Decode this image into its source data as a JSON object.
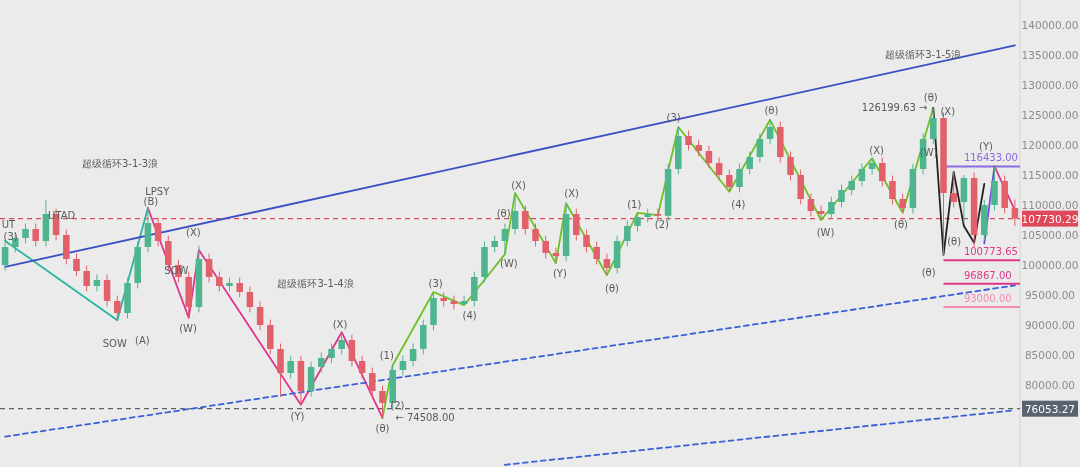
{
  "chart_data": {
    "type": "candlestick",
    "categories": [
      null,
      null,
      null,
      null,
      null,
      null,
      null,
      null,
      null,
      null,
      null,
      null,
      null,
      null,
      null,
      null,
      null,
      null,
      null,
      null,
      null,
      null,
      null,
      null,
      null,
      null,
      null,
      null,
      null,
      null,
      null,
      null,
      null,
      null,
      null,
      null,
      null,
      null,
      null,
      null,
      null,
      null,
      null,
      null,
      null,
      null,
      null,
      null,
      null,
      null,
      null,
      null,
      null,
      null,
      null,
      null,
      null,
      null,
      null,
      null,
      null,
      null,
      null,
      null,
      null,
      null,
      null,
      null,
      null,
      null,
      null,
      null,
      null,
      null,
      null,
      null,
      null,
      null,
      null,
      null,
      null,
      null,
      null,
      null,
      null,
      null,
      null,
      null,
      null,
      null,
      null,
      null,
      null,
      null,
      null,
      null,
      null,
      null,
      null,
      null
    ],
    "ohlc": [
      [
        100000,
        103800,
        99100,
        103000
      ],
      [
        103000,
        105400,
        102100,
        104500
      ],
      [
        104500,
        106900,
        103600,
        106000
      ],
      [
        106000,
        106900,
        103100,
        104000
      ],
      [
        104000,
        110800,
        103100,
        108500
      ],
      [
        108500,
        109400,
        104100,
        105000
      ],
      [
        105000,
        105900,
        100100,
        101000
      ],
      [
        101000,
        101900,
        98100,
        99000
      ],
      [
        99000,
        99900,
        95600,
        96500
      ],
      [
        96500,
        98400,
        95600,
        97500
      ],
      [
        97500,
        98400,
        93100,
        94000
      ],
      [
        94000,
        94900,
        90800,
        92000
      ],
      [
        92000,
        97900,
        91100,
        97000
      ],
      [
        97000,
        103900,
        96100,
        103000
      ],
      [
        103000,
        109500,
        102100,
        107000
      ],
      [
        107000,
        107900,
        103100,
        104000
      ],
      [
        104000,
        104900,
        99100,
        100000
      ],
      [
        100000,
        100900,
        97100,
        98000
      ],
      [
        98000,
        98900,
        91200,
        93000
      ],
      [
        93000,
        103200,
        92100,
        101000
      ],
      [
        101000,
        101900,
        97100,
        98000
      ],
      [
        98000,
        98900,
        95600,
        96500
      ],
      [
        96500,
        97900,
        95600,
        97000
      ],
      [
        97000,
        97900,
        94600,
        95500
      ],
      [
        95500,
        96400,
        92100,
        93000
      ],
      [
        93000,
        93900,
        89100,
        90000
      ],
      [
        90000,
        90900,
        85100,
        86000
      ],
      [
        86000,
        86900,
        78000,
        82000
      ],
      [
        82000,
        84900,
        81100,
        84000
      ],
      [
        84000,
        84900,
        76700,
        79000
      ],
      [
        79000,
        83900,
        78100,
        83000
      ],
      [
        83000,
        85400,
        82100,
        84500
      ],
      [
        84500,
        86900,
        83600,
        86000
      ],
      [
        86000,
        88800,
        85100,
        87500
      ],
      [
        87500,
        88400,
        83100,
        84000
      ],
      [
        84000,
        84900,
        81100,
        82000
      ],
      [
        82000,
        82900,
        78100,
        79000
      ],
      [
        79000,
        79900,
        74508,
        77000
      ],
      [
        77000,
        83300,
        76100,
        82500
      ],
      [
        82500,
        84900,
        81600,
        84000
      ],
      [
        84000,
        86900,
        83100,
        86000
      ],
      [
        86000,
        90900,
        85100,
        90000
      ],
      [
        90000,
        95500,
        89100,
        94500
      ],
      [
        94500,
        95400,
        93100,
        94000
      ],
      [
        94000,
        94900,
        92600,
        93500
      ],
      [
        93500,
        94900,
        93300,
        94000
      ],
      [
        94000,
        98900,
        93100,
        98000
      ],
      [
        98000,
        103900,
        97100,
        103000
      ],
      [
        103000,
        104900,
        102100,
        104000
      ],
      [
        104000,
        106900,
        101800,
        106000
      ],
      [
        106000,
        112000,
        105100,
        109000
      ],
      [
        109000,
        109900,
        105100,
        106000
      ],
      [
        106000,
        106900,
        103100,
        104000
      ],
      [
        104000,
        104900,
        101100,
        102000
      ],
      [
        102000,
        102900,
        100300,
        101500
      ],
      [
        101500,
        110300,
        100600,
        108500
      ],
      [
        108500,
        109400,
        104100,
        105000
      ],
      [
        105000,
        105900,
        102100,
        103000
      ],
      [
        103000,
        103900,
        100100,
        101000
      ],
      [
        101000,
        101900,
        98300,
        99500
      ],
      [
        99500,
        104900,
        98600,
        104000
      ],
      [
        104000,
        107400,
        103100,
        106500
      ],
      [
        106500,
        108700,
        105600,
        108000
      ],
      [
        108000,
        109400,
        107100,
        108500
      ],
      [
        108500,
        109400,
        107300,
        108200
      ],
      [
        108200,
        116900,
        107300,
        116000
      ],
      [
        116000,
        123000,
        115100,
        121500
      ],
      [
        121500,
        122400,
        119100,
        120000
      ],
      [
        120000,
        120900,
        118100,
        119000
      ],
      [
        119000,
        119900,
        116100,
        117000
      ],
      [
        117000,
        117900,
        114100,
        115000
      ],
      [
        115000,
        115900,
        112200,
        113000
      ],
      [
        113000,
        116900,
        112100,
        116000
      ],
      [
        116000,
        118900,
        115100,
        118000
      ],
      [
        118000,
        121900,
        117100,
        121000
      ],
      [
        121000,
        124200,
        120100,
        123000
      ],
      [
        123000,
        123900,
        117100,
        118000
      ],
      [
        118000,
        118900,
        114100,
        115000
      ],
      [
        115000,
        115900,
        110100,
        111000
      ],
      [
        111000,
        111900,
        108100,
        109000
      ],
      [
        109000,
        109900,
        107500,
        108500
      ],
      [
        108500,
        111400,
        107600,
        110500
      ],
      [
        110500,
        113400,
        109600,
        112500
      ],
      [
        112500,
        114900,
        111600,
        114000
      ],
      [
        114000,
        116900,
        113100,
        116000
      ],
      [
        116000,
        117800,
        115100,
        117000
      ],
      [
        117000,
        117900,
        113100,
        114000
      ],
      [
        114000,
        114900,
        110100,
        111000
      ],
      [
        111000,
        111900,
        108700,
        109500
      ],
      [
        109500,
        116900,
        108600,
        116000
      ],
      [
        116000,
        121900,
        115100,
        121000
      ],
      [
        121000,
        126199.63,
        120100,
        124500
      ],
      [
        124500,
        125400,
        101700,
        112000
      ],
      [
        112000,
        115500,
        109600,
        110500
      ],
      [
        110500,
        115000,
        107000,
        114500
      ],
      [
        114500,
        115400,
        103000,
        105000
      ],
      [
        105000,
        110900,
        104100,
        110000
      ],
      [
        110000,
        116433,
        109100,
        114000
      ],
      [
        114000,
        114900,
        108600,
        109500
      ],
      [
        109500,
        110900,
        106500,
        107730.29
      ]
    ],
    "series": [
      {
        "type": "line",
        "color": "#2bb5a0",
        "values": [
          104000,
          null,
          null,
          null,
          null,
          null,
          null,
          null,
          null,
          null,
          null,
          90800,
          null,
          null,
          109500,
          null,
          null,
          null,
          null,
          null,
          null,
          null,
          null,
          null,
          null,
          null,
          null,
          null,
          null,
          null,
          null,
          null,
          null,
          null,
          null,
          null,
          null,
          null,
          null,
          null,
          null,
          null,
          null,
          null,
          null,
          null,
          null,
          null,
          null,
          null,
          null,
          null,
          null,
          null,
          null,
          null,
          null,
          null,
          null,
          null,
          null,
          null,
          null,
          null,
          null,
          null,
          null,
          null,
          null,
          null,
          null,
          null,
          null,
          null,
          null,
          null,
          null,
          null,
          null,
          null,
          null,
          null,
          null,
          null,
          null,
          null,
          null,
          null,
          null,
          null,
          null,
          null,
          null,
          null,
          null,
          null,
          null,
          null,
          null,
          null
        ]
      },
      {
        "type": "line",
        "color": "#e0358a",
        "values": [
          null,
          null,
          null,
          null,
          null,
          null,
          null,
          null,
          null,
          null,
          null,
          null,
          null,
          null,
          109500,
          null,
          null,
          null,
          91200,
          102500,
          null,
          null,
          null,
          null,
          null,
          null,
          null,
          null,
          null,
          76700,
          null,
          null,
          null,
          88800,
          null,
          null,
          null,
          74508,
          null,
          null,
          null,
          null,
          null,
          null,
          null,
          null,
          null,
          null,
          null,
          null,
          null,
          null,
          null,
          null,
          null,
          null,
          null,
          null,
          null,
          null,
          null,
          null,
          null,
          null,
          null,
          null,
          null,
          null,
          null,
          null,
          null,
          null,
          null,
          null,
          null,
          null,
          null,
          null,
          null,
          null,
          null,
          null,
          null,
          null,
          null,
          null,
          null,
          null,
          null,
          null,
          null,
          null,
          null,
          null,
          null,
          null,
          null,
          null,
          null,
          null
        ]
      },
      {
        "type": "line",
        "color": "#6cc224",
        "values": [
          null,
          null,
          null,
          null,
          null,
          null,
          null,
          null,
          null,
          null,
          null,
          null,
          null,
          null,
          null,
          null,
          null,
          null,
          null,
          null,
          null,
          null,
          null,
          null,
          null,
          null,
          null,
          null,
          null,
          null,
          null,
          null,
          null,
          null,
          null,
          null,
          null,
          74508,
          83300,
          null,
          null,
          null,
          95500,
          null,
          null,
          93300,
          null,
          null,
          null,
          101800,
          112000,
          null,
          null,
          null,
          100300,
          110300,
          null,
          null,
          null,
          98300,
          null,
          null,
          108700,
          null,
          108300,
          null,
          123000,
          null,
          null,
          null,
          null,
          112200,
          null,
          null,
          null,
          124200,
          null,
          null,
          null,
          null,
          107500,
          null,
          null,
          null,
          null,
          117800,
          null,
          null,
          108700,
          null,
          null,
          126199.63,
          null,
          null,
          null,
          null,
          null,
          null,
          null,
          null
        ]
      },
      {
        "type": "line",
        "color": "#222222",
        "values": [
          null,
          null,
          null,
          null,
          null,
          null,
          null,
          null,
          null,
          null,
          null,
          null,
          null,
          null,
          null,
          null,
          null,
          null,
          null,
          null,
          null,
          null,
          null,
          null,
          null,
          null,
          null,
          null,
          null,
          null,
          null,
          null,
          null,
          null,
          null,
          null,
          null,
          null,
          null,
          null,
          null,
          null,
          null,
          null,
          null,
          null,
          null,
          null,
          null,
          null,
          null,
          null,
          null,
          null,
          null,
          null,
          null,
          null,
          null,
          null,
          null,
          null,
          null,
          null,
          null,
          null,
          null,
          null,
          null,
          null,
          null,
          null,
          null,
          null,
          null,
          null,
          null,
          null,
          null,
          null,
          null,
          null,
          null,
          null,
          null,
          null,
          null,
          null,
          null,
          null,
          null,
          126199.63,
          101700,
          115500,
          106500,
          103700,
          113500,
          null,
          null,
          null
        ]
      },
      {
        "type": "line",
        "color": "#6a4fd6",
        "values": [
          null,
          null,
          null,
          null,
          null,
          null,
          null,
          null,
          null,
          null,
          null,
          null,
          null,
          null,
          null,
          null,
          null,
          null,
          null,
          null,
          null,
          null,
          null,
          null,
          null,
          null,
          null,
          null,
          null,
          null,
          null,
          null,
          null,
          null,
          null,
          null,
          null,
          null,
          null,
          null,
          null,
          null,
          null,
          null,
          null,
          null,
          null,
          null,
          null,
          null,
          null,
          null,
          null,
          null,
          null,
          null,
          null,
          null,
          null,
          null,
          null,
          null,
          null,
          null,
          null,
          null,
          null,
          null,
          null,
          null,
          null,
          null,
          null,
          null,
          null,
          null,
          null,
          null,
          null,
          null,
          null,
          null,
          null,
          null,
          null,
          null,
          null,
          null,
          null,
          null,
          null,
          null,
          null,
          null,
          null,
          null,
          103600,
          116433,
          null,
          null
        ]
      },
      {
        "type": "line",
        "color": "#e0358a",
        "values": [
          null,
          null,
          null,
          null,
          null,
          null,
          null,
          null,
          null,
          null,
          null,
          null,
          null,
          null,
          null,
          null,
          null,
          null,
          null,
          null,
          null,
          null,
          null,
          null,
          null,
          null,
          null,
          null,
          null,
          null,
          null,
          null,
          null,
          null,
          null,
          null,
          null,
          null,
          null,
          null,
          null,
          null,
          null,
          null,
          null,
          null,
          null,
          null,
          null,
          null,
          null,
          null,
          null,
          null,
          null,
          null,
          null,
          null,
          null,
          null,
          null,
          null,
          null,
          null,
          null,
          null,
          null,
          null,
          null,
          null,
          null,
          null,
          null,
          null,
          null,
          null,
          null,
          null,
          null,
          null,
          null,
          null,
          null,
          null,
          null,
          null,
          null,
          null,
          null,
          null,
          null,
          null,
          null,
          null,
          null,
          null,
          null,
          116433,
          null,
          109100
        ]
      },
      {
        "type": "line",
        "color": "#3b4fc4",
        "values": [
          99700,
          null,
          null,
          null,
          null,
          null,
          null,
          null,
          null,
          null,
          null,
          null,
          null,
          null,
          null,
          null,
          null,
          null,
          null,
          null,
          null,
          null,
          null,
          null,
          null,
          null,
          null,
          null,
          null,
          null,
          null,
          null,
          null,
          null,
          null,
          null,
          null,
          null,
          null,
          null,
          null,
          null,
          null,
          null,
          null,
          null,
          null,
          null,
          null,
          null,
          null,
          null,
          null,
          null,
          null,
          null,
          null,
          null,
          null,
          null,
          null,
          null,
          null,
          null,
          null,
          null,
          null,
          null,
          null,
          null,
          null,
          null,
          null,
          null,
          null,
          null,
          null,
          null,
          null,
          null,
          null,
          null,
          null,
          null,
          null,
          null,
          null,
          null,
          null,
          null,
          null,
          null,
          null,
          null,
          null,
          null,
          null,
          null,
          null,
          136600
        ]
      },
      {
        "type": "line",
        "color": "#3b5fd4",
        "line_style": "dashed",
        "values": [
          71400,
          null,
          null,
          null,
          null,
          null,
          null,
          null,
          null,
          null,
          null,
          null,
          null,
          null,
          null,
          null,
          null,
          null,
          null,
          null,
          null,
          null,
          null,
          null,
          null,
          null,
          null,
          null,
          null,
          null,
          null,
          null,
          null,
          null,
          null,
          null,
          null,
          null,
          null,
          null,
          null,
          null,
          null,
          null,
          null,
          null,
          null,
          null,
          null,
          null,
          null,
          null,
          null,
          null,
          null,
          null,
          null,
          null,
          null,
          null,
          null,
          null,
          null,
          null,
          null,
          null,
          null,
          null,
          null,
          null,
          null,
          null,
          null,
          null,
          null,
          null,
          null,
          null,
          null,
          null,
          null,
          null,
          null,
          null,
          null,
          null,
          null,
          null,
          null,
          null,
          null,
          null,
          null,
          null,
          null,
          null,
          null,
          null,
          null,
          96600
        ]
      },
      {
        "type": "line",
        "color": "#3b5fd4",
        "line_style": "dashed",
        "values": [
          null,
          null,
          null,
          null,
          null,
          null,
          null,
          null,
          null,
          null,
          null,
          null,
          null,
          null,
          null,
          null,
          null,
          null,
          null,
          null,
          null,
          null,
          null,
          null,
          null,
          null,
          null,
          null,
          null,
          null,
          null,
          null,
          null,
          null,
          null,
          null,
          null,
          null,
          null,
          null,
          null,
          null,
          null,
          null,
          null,
          null,
          null,
          null,
          null,
          66700,
          null,
          null,
          null,
          null,
          null,
          null,
          null,
          null,
          null,
          null,
          null,
          null,
          null,
          null,
          null,
          null,
          null,
          null,
          null,
          null,
          null,
          null,
          null,
          null,
          null,
          null,
          null,
          null,
          null,
          null,
          null,
          null,
          null,
          null,
          null,
          null,
          null,
          null,
          null,
          null,
          null,
          null,
          null,
          null,
          null,
          null,
          null,
          null,
          null,
          75800
        ]
      }
    ],
    "ylim": [
      66333,
      144167
    ],
    "yticks": [
      {
        "value": 80000,
        "label": "80000.00"
      },
      {
        "value": 85000,
        "label": "85000.00"
      },
      {
        "value": 90000,
        "label": "90000.00"
      },
      {
        "value": 95000,
        "label": "95000.00"
      },
      {
        "value": 100000,
        "label": "100000.00"
      },
      {
        "value": 105000,
        "label": "105000.00"
      },
      {
        "value": 110000,
        "label": "110000.00"
      },
      {
        "value": 115000,
        "label": "115000.00"
      },
      {
        "value": 120000,
        "label": "120000.00"
      },
      {
        "value": 125000,
        "label": "125000.00"
      },
      {
        "value": 130000,
        "label": "130000.00"
      },
      {
        "value": 135000,
        "label": "135000.00"
      },
      {
        "value": 140000,
        "label": "140000.00"
      }
    ],
    "tick_labels": "y",
    "ref_lines": [
      {
        "axis": "y",
        "value": 107730.29,
        "label": "107730.29",
        "color": "#e0485a",
        "line_style": "dashed"
      },
      {
        "axis": "y",
        "value": 76053.27,
        "label": "76053.27",
        "color": "#5a6270",
        "line_style": "dashed"
      },
      {
        "axis": "y",
        "value": 116433,
        "label": "116433.00",
        "color": "#8a6ae0",
        "line_style": "solid"
      },
      {
        "axis": "y",
        "value": 100773.65,
        "label": "100773.65",
        "color": "#e0358a",
        "line_style": "solid"
      },
      {
        "axis": "y",
        "value": 96867,
        "label": "96867.00",
        "color": "#e0358a",
        "line_style": "solid"
      },
      {
        "axis": "y",
        "value": 93000,
        "label": "93000.00",
        "color": "#f08ab5",
        "line_style": "solid"
      }
    ],
    "annotations": [
      "超级循环3-1-3浪",
      "超级循环3-1-4浪",
      "超级循环3-1-5浪",
      "UT",
      "(3)",
      "UTAD",
      "LPSY",
      "(B)",
      "SOW",
      "(A)",
      "SOW",
      "(W)",
      "(X)",
      "(Y)",
      "(X)",
      "(θ)",
      "← 74508.00",
      "(1)",
      "(2)",
      "(3)",
      "(4)",
      "(W)",
      "(θ)",
      "(X)",
      "(Y)",
      "(X)",
      "(θ)",
      "(1)",
      "(2)",
      "(3)",
      "(4)",
      "(θ)",
      "(W)",
      "(X)",
      "(θ)",
      "126199.63 →",
      "(θ)",
      "(X)",
      "(W)",
      "(θ)",
      "(θ)",
      "(Y)"
    ]
  }
}
